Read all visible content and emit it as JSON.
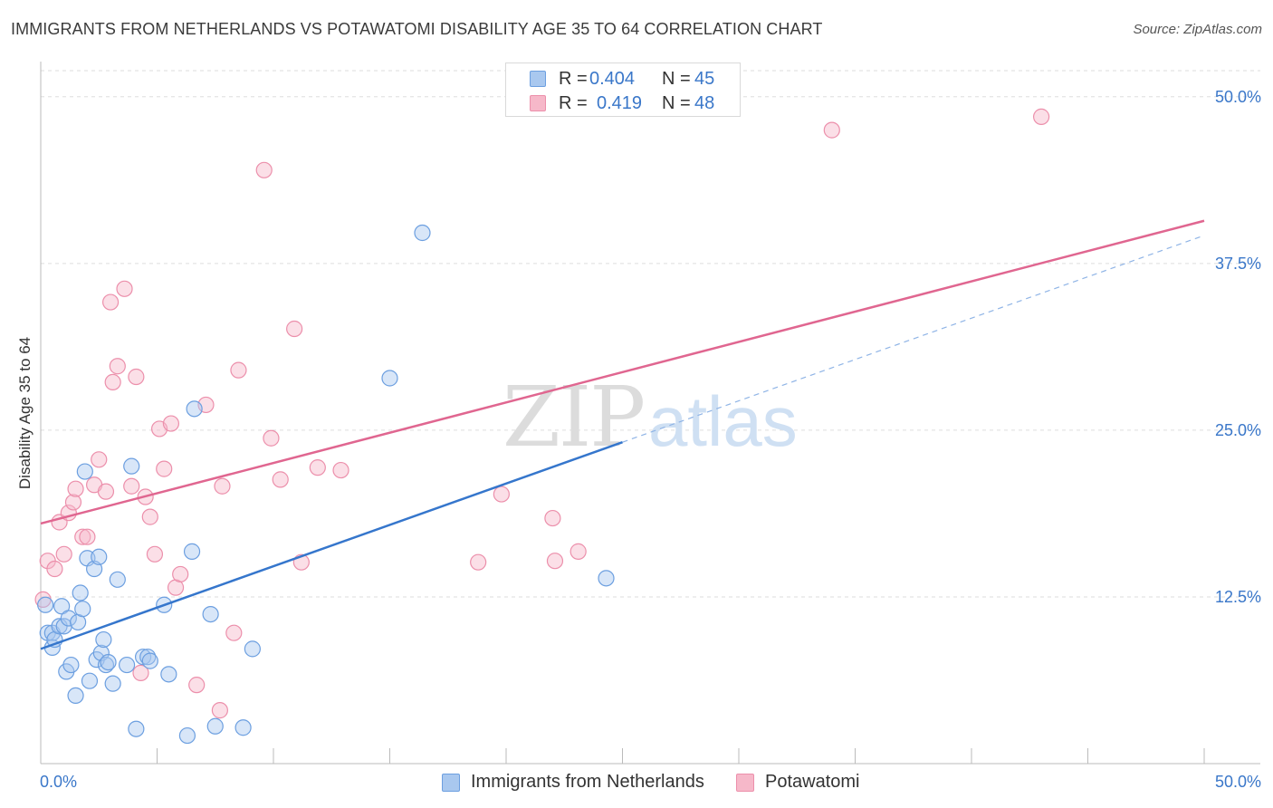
{
  "title": "IMMIGRANTS FROM NETHERLANDS VS POTAWATOMI DISABILITY AGE 35 TO 64 CORRELATION CHART",
  "source": "Source: ZipAtlas.com",
  "watermark": {
    "zip": "ZIP",
    "atlas": "atlas"
  },
  "colors": {
    "blue_fill": "#a9c8ef",
    "blue_stroke": "#6c9fe0",
    "blue_line": "#3576cc",
    "pink_fill": "#f6b8c9",
    "pink_stroke": "#ec8fab",
    "pink_line": "#e06690",
    "tick_label": "#3a77c9",
    "grid": "#dddddd"
  },
  "legend": {
    "rows": [
      {
        "r_label": "R =",
        "r_value": "0.404",
        "n_label": "N =",
        "n_value": "45"
      },
      {
        "r_label": "R =",
        "r_value": "0.419",
        "n_label": "N =",
        "n_value": "48"
      }
    ]
  },
  "bottom_legend": {
    "items": [
      {
        "label": "Immigrants from Netherlands"
      },
      {
        "label": "Potawatomi"
      }
    ]
  },
  "chart_data": {
    "type": "scatter",
    "title": "IMMIGRANTS FROM NETHERLANDS VS POTAWATOMI DISABILITY AGE 35 TO 64 CORRELATION CHART",
    "xlabel": "",
    "ylabel": "Disability Age 35 to 64",
    "xlim": [
      0,
      50
    ],
    "ylim": [
      0,
      52.5
    ],
    "x_tick_labels": [
      "0.0%",
      "50.0%"
    ],
    "y_ticks": [
      12.5,
      25.0,
      37.5,
      50.0
    ],
    "y_tick_labels": [
      "12.5%",
      "25.0%",
      "37.5%",
      "50.0%"
    ],
    "grid": true,
    "legend_position": "top-center",
    "series": [
      {
        "name": "Immigrants from Netherlands",
        "color": "#6c9fe0",
        "r": 0.404,
        "n": 45,
        "trend": {
          "x0": 0,
          "y0": 8.6,
          "x1": 25,
          "y1": 24.1,
          "dashed_to": {
            "x": 50,
            "y": 39.6
          }
        },
        "points": [
          [
            0.2,
            11.9
          ],
          [
            0.3,
            9.8
          ],
          [
            0.5,
            9.8
          ],
          [
            0.5,
            8.7
          ],
          [
            0.6,
            9.3
          ],
          [
            0.8,
            10.3
          ],
          [
            0.9,
            11.8
          ],
          [
            1.0,
            10.3
          ],
          [
            1.1,
            6.9
          ],
          [
            1.2,
            10.9
          ],
          [
            1.3,
            7.4
          ],
          [
            1.5,
            5.1
          ],
          [
            1.6,
            10.6
          ],
          [
            1.7,
            12.8
          ],
          [
            1.8,
            11.6
          ],
          [
            1.9,
            21.9
          ],
          [
            2.0,
            15.4
          ],
          [
            2.1,
            6.2
          ],
          [
            2.3,
            14.6
          ],
          [
            2.4,
            7.8
          ],
          [
            2.5,
            15.5
          ],
          [
            2.6,
            8.3
          ],
          [
            2.7,
            9.3
          ],
          [
            2.8,
            7.4
          ],
          [
            2.9,
            7.6
          ],
          [
            3.1,
            6.0
          ],
          [
            3.3,
            13.8
          ],
          [
            3.7,
            7.4
          ],
          [
            3.9,
            22.3
          ],
          [
            4.1,
            2.6
          ],
          [
            4.4,
            8.0
          ],
          [
            4.6,
            8.0
          ],
          [
            4.7,
            7.7
          ],
          [
            5.3,
            11.9
          ],
          [
            5.5,
            6.7
          ],
          [
            6.3,
            2.1
          ],
          [
            6.5,
            15.9
          ],
          [
            6.6,
            26.6
          ],
          [
            7.3,
            11.2
          ],
          [
            7.5,
            2.8
          ],
          [
            8.7,
            2.7
          ],
          [
            9.1,
            8.6
          ],
          [
            15.0,
            28.9
          ],
          [
            16.4,
            39.8
          ],
          [
            24.3,
            13.9
          ]
        ]
      },
      {
        "name": "Potawatomi",
        "color": "#ec8fab",
        "r": 0.419,
        "n": 48,
        "trend": {
          "x0": 0,
          "y0": 18.0,
          "x1": 50,
          "y1": 40.7
        },
        "points": [
          [
            0.1,
            12.3
          ],
          [
            0.3,
            15.2
          ],
          [
            0.6,
            14.6
          ],
          [
            0.8,
            18.1
          ],
          [
            1.0,
            15.7
          ],
          [
            1.2,
            18.8
          ],
          [
            1.4,
            19.6
          ],
          [
            1.5,
            20.6
          ],
          [
            1.8,
            17.0
          ],
          [
            2.0,
            17.0
          ],
          [
            2.3,
            20.9
          ],
          [
            2.5,
            22.8
          ],
          [
            2.8,
            20.4
          ],
          [
            3.0,
            34.6
          ],
          [
            3.1,
            28.6
          ],
          [
            3.3,
            29.8
          ],
          [
            3.6,
            35.6
          ],
          [
            3.9,
            20.8
          ],
          [
            4.1,
            29.0
          ],
          [
            4.3,
            6.8
          ],
          [
            4.5,
            20.0
          ],
          [
            4.7,
            18.5
          ],
          [
            4.9,
            15.7
          ],
          [
            5.1,
            25.1
          ],
          [
            5.3,
            22.1
          ],
          [
            5.6,
            25.5
          ],
          [
            5.8,
            13.2
          ],
          [
            6.0,
            14.2
          ],
          [
            6.7,
            5.9
          ],
          [
            7.1,
            26.9
          ],
          [
            7.8,
            20.8
          ],
          [
            8.3,
            9.8
          ],
          [
            8.5,
            29.5
          ],
          [
            9.6,
            44.5
          ],
          [
            9.9,
            24.4
          ],
          [
            10.3,
            21.3
          ],
          [
            10.9,
            32.6
          ],
          [
            11.2,
            15.1
          ],
          [
            11.9,
            22.2
          ],
          [
            12.9,
            22.0
          ],
          [
            18.8,
            15.1
          ],
          [
            19.8,
            20.2
          ],
          [
            22.0,
            18.4
          ],
          [
            22.1,
            15.2
          ],
          [
            23.1,
            15.9
          ],
          [
            34.0,
            47.5
          ],
          [
            43.0,
            48.5
          ],
          [
            7.7,
            4.0
          ]
        ]
      }
    ]
  }
}
